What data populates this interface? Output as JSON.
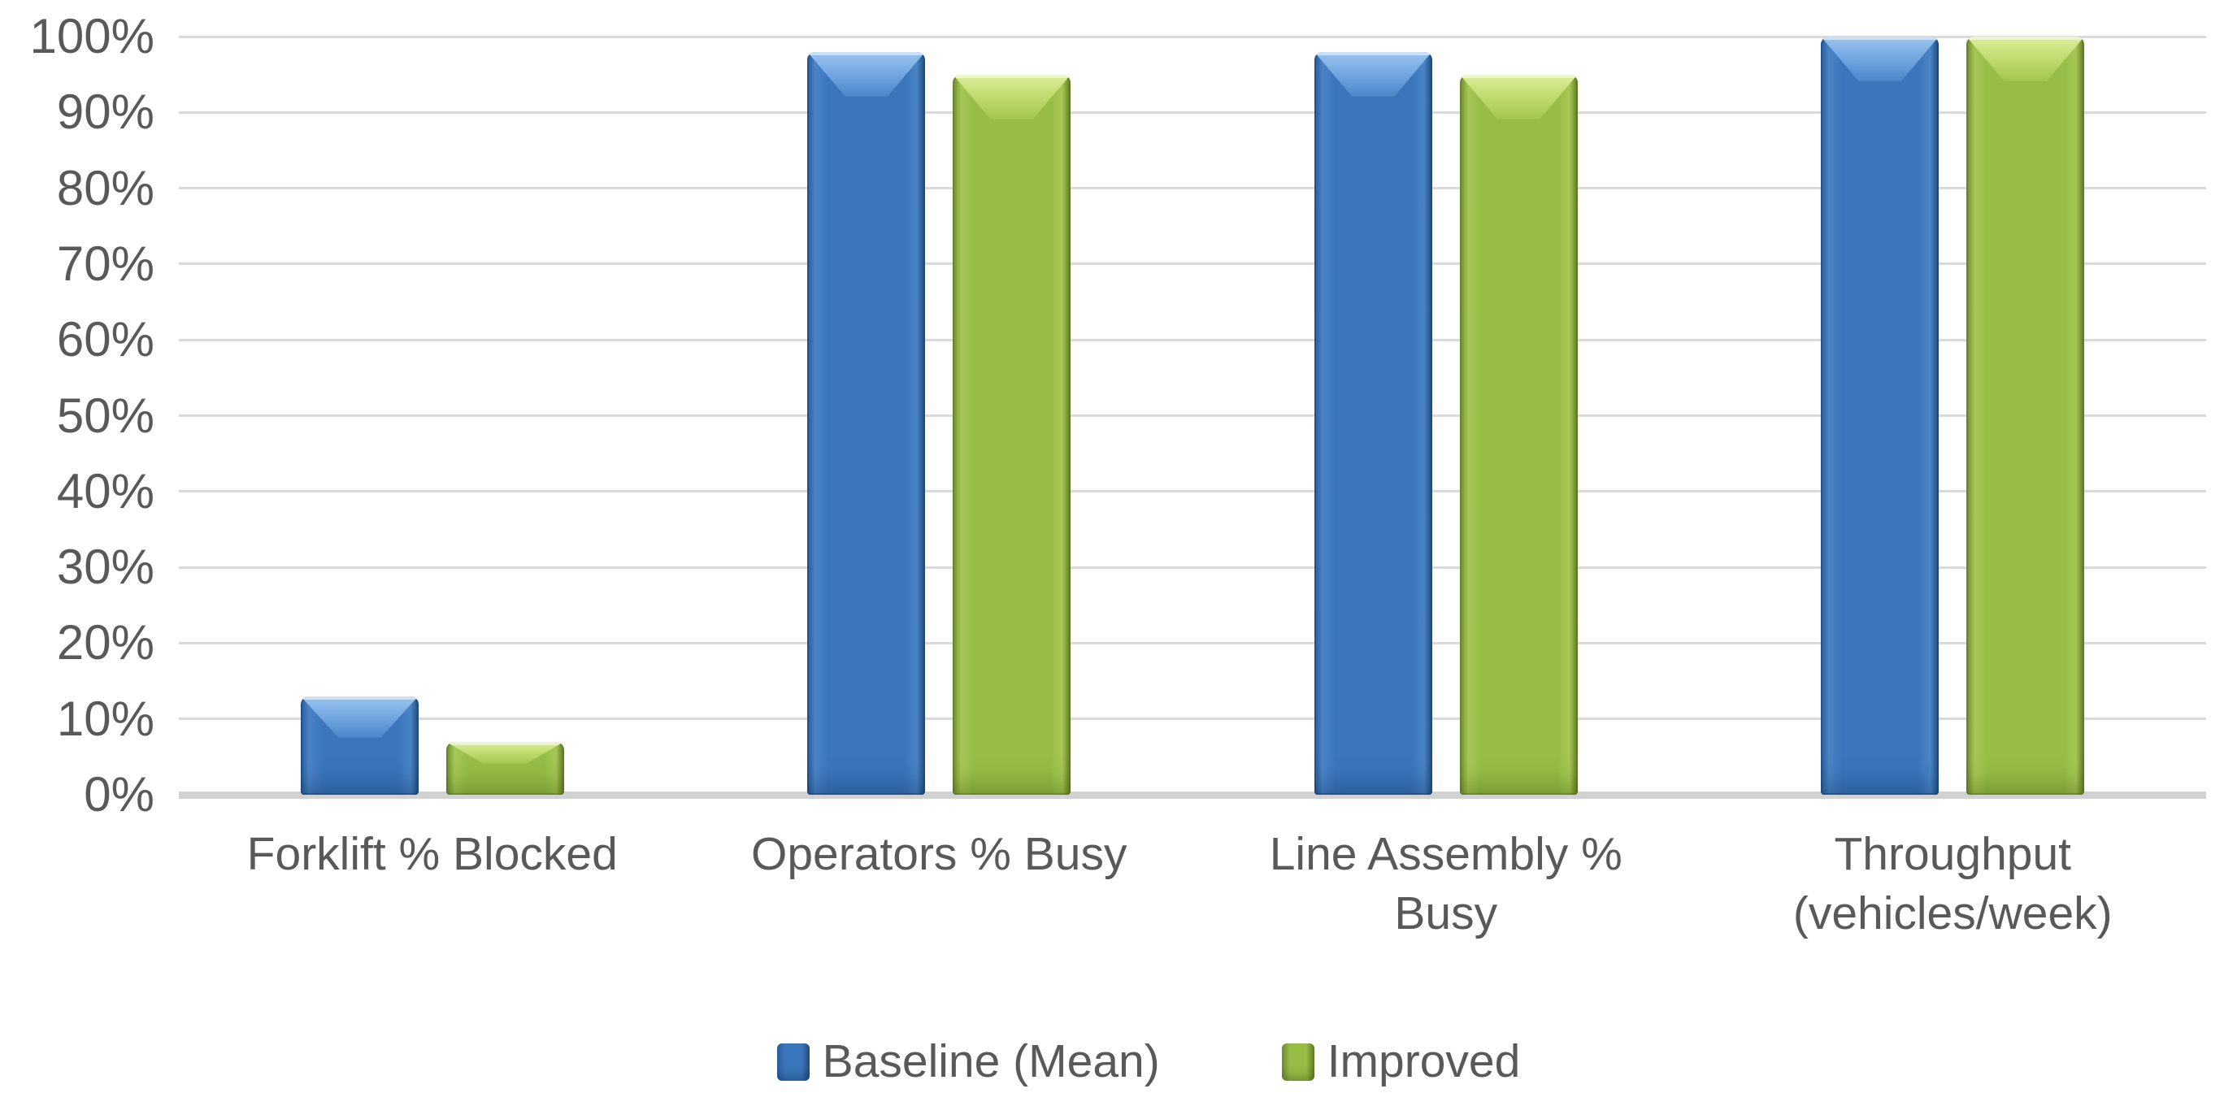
{
  "chart_data": {
    "type": "bar",
    "title": "",
    "categories": [
      "Forklift % Blocked",
      "Operators % Busy",
      "Line Assembly % Busy",
      "Throughput (vehicles/week)"
    ],
    "series": [
      {
        "name": "Baseline (Mean)",
        "values": [
          13,
          98,
          98,
          100
        ]
      },
      {
        "name": "Improved",
        "values": [
          7,
          95,
          95,
          100
        ]
      }
    ],
    "xlabel": "",
    "ylabel": "",
    "ylim": [
      0,
      100
    ],
    "y_ticks": [
      "0%",
      "10%",
      "20%",
      "30%",
      "40%",
      "50%",
      "60%",
      "70%",
      "80%",
      "90%",
      "100%"
    ],
    "grid": true,
    "legend_position": "bottom"
  },
  "colors": {
    "series": [
      {
        "main": "#3B76BC",
        "light": "#9AC4F0",
        "dark": "#22517F"
      },
      {
        "main": "#97BD46",
        "light": "#DCEF9A",
        "dark": "#5F7C26"
      }
    ],
    "gridline": "#DADADA",
    "axis_line": "#D2D2D2",
    "text": "#595959",
    "background": "#FFFFFF"
  }
}
